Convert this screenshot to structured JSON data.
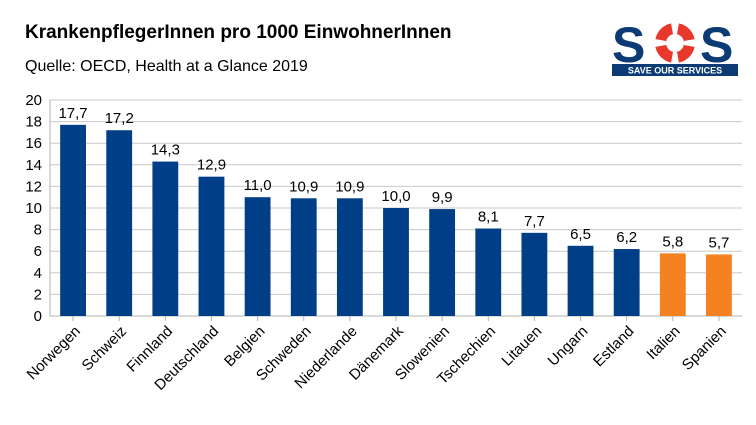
{
  "header": {
    "title": "KrankenpflegerInnen pro 1000 EinwohnerInnen",
    "subtitle": "Quelle: OECD, Health at a Glance 2019"
  },
  "logo": {
    "text": "SOS",
    "tagline": "SAVE OUR SERVICES",
    "icon": "lifebuoy-icon",
    "colors": {
      "navy": "#0b3a75",
      "red": "#e8382c"
    }
  },
  "chart_data": {
    "type": "bar",
    "categories": [
      "Norwegen",
      "Schweiz",
      "Finnland",
      "Deutschland",
      "Belgien",
      "Schweden",
      "Niederlande",
      "Dänemark",
      "Slowenien",
      "Tschechien",
      "Litauen",
      "Ungarn",
      "Estland",
      "Italien",
      "Spanien"
    ],
    "values": [
      17.7,
      17.2,
      14.3,
      12.9,
      11.0,
      10.9,
      10.9,
      10.0,
      9.9,
      8.1,
      7.7,
      6.5,
      6.2,
      5.8,
      5.7
    ],
    "value_labels": [
      "17,7",
      "17,2",
      "14,3",
      "12,9",
      "11,0",
      "10,9",
      "10,9",
      "10,0",
      "9,9",
      "8,1",
      "7,7",
      "6,5",
      "6,2",
      "5,8",
      "5,7"
    ],
    "bar_colors": [
      "#003f87",
      "#003f87",
      "#003f87",
      "#003f87",
      "#003f87",
      "#003f87",
      "#003f87",
      "#003f87",
      "#003f87",
      "#003f87",
      "#003f87",
      "#003f87",
      "#003f87",
      "#f58220",
      "#f58220"
    ],
    "ylim": [
      0,
      20
    ],
    "yticks": [
      0,
      2,
      4,
      6,
      8,
      10,
      12,
      14,
      16,
      18,
      20
    ],
    "grid": true,
    "legend": "none"
  }
}
